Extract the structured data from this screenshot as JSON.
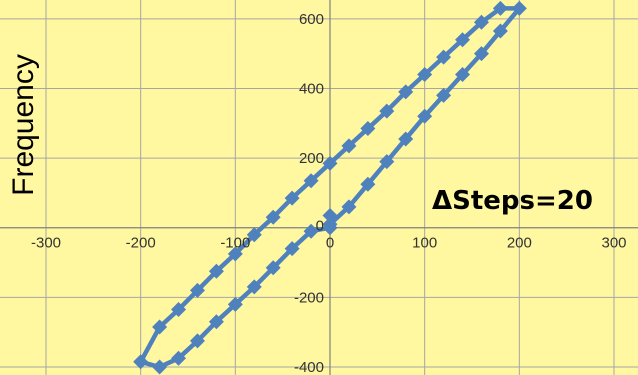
{
  "chart_data": {
    "type": "scatter",
    "title": "",
    "xlabel": "",
    "ylabel": "Frequency",
    "annotation": "ΔSteps=20",
    "xlim": [
      -300,
      300
    ],
    "ylim": [
      -400,
      700
    ],
    "xticks": [
      -300,
      -200,
      -100,
      0,
      100,
      200,
      300
    ],
    "yticks": [
      -400,
      -200,
      0,
      200,
      400,
      600
    ],
    "xtick_labels": [
      "-300",
      "-200",
      "-100",
      "0",
      "100",
      "200",
      "300"
    ],
    "ytick_labels": [
      "-400",
      "-200",
      "0",
      "200",
      "400",
      "600"
    ],
    "grid": true,
    "legend": "none",
    "colors": {
      "background": "#FFF8A0",
      "series": "#4F81BD",
      "grid": "#A6A6A6",
      "axis": "#808080"
    },
    "series": [
      {
        "marker": "diamond",
        "line": true,
        "x": [
          0,
          0,
          20,
          40,
          60,
          80,
          100,
          120,
          140,
          160,
          180,
          200,
          180,
          160,
          140,
          120,
          100,
          80,
          60,
          40,
          20,
          0,
          -20,
          -40,
          -60,
          -80,
          -100,
          -120,
          -140,
          -160,
          -180,
          -200,
          -180,
          -160,
          -140,
          -120,
          -100,
          -80,
          -60,
          -40,
          -20,
          0
        ],
        "y": [
          35,
          10,
          60,
          125,
          190,
          255,
          320,
          380,
          440,
          500,
          565,
          630,
          630,
          590,
          540,
          490,
          440,
          390,
          335,
          285,
          235,
          185,
          135,
          85,
          30,
          -20,
          -75,
          -125,
          -180,
          -235,
          -285,
          -385,
          -400,
          -375,
          -325,
          -270,
          -220,
          -170,
          -115,
          -60,
          -10,
          0
        ]
      }
    ]
  }
}
